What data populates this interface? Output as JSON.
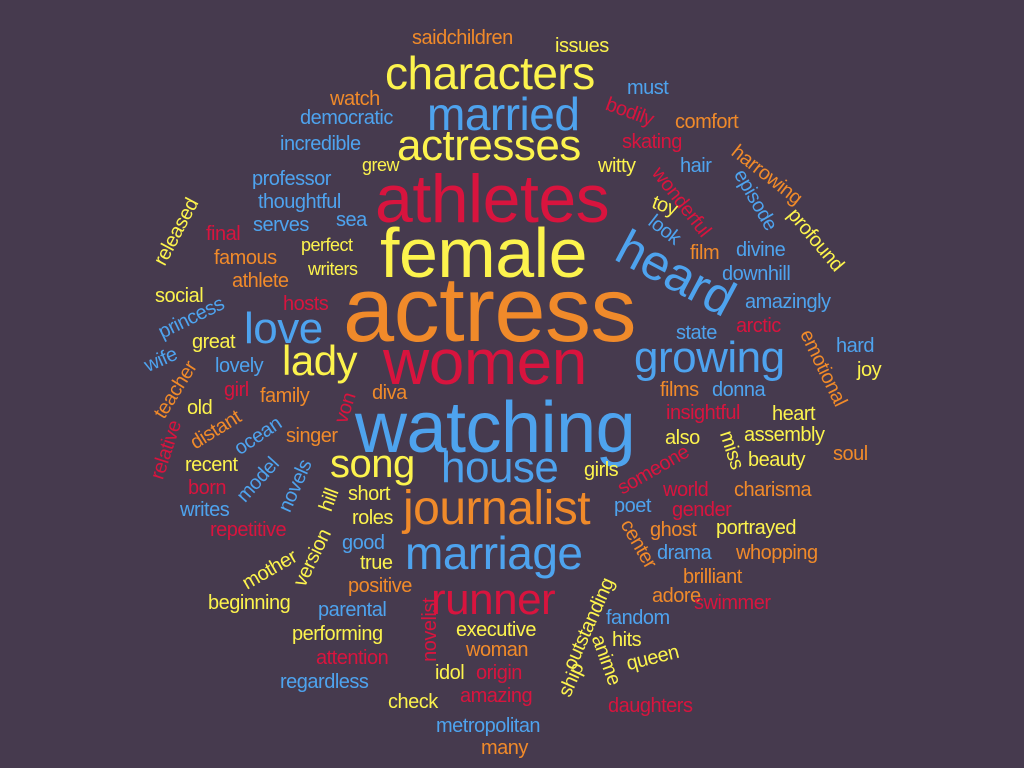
{
  "colors": {
    "background": "#463a4e",
    "yellow": "#fcf34d",
    "orange": "#f08a2a",
    "red": "#d8143e",
    "blue": "#4ea3ee"
  },
  "words": [
    {
      "text": "actress",
      "color": "orange"
    },
    {
      "text": "watching",
      "color": "blue"
    },
    {
      "text": "female",
      "color": "yellow"
    },
    {
      "text": "athletes",
      "color": "red"
    },
    {
      "text": "women",
      "color": "red"
    },
    {
      "text": "characters",
      "color": "yellow"
    },
    {
      "text": "married",
      "color": "blue"
    },
    {
      "text": "actresses",
      "color": "yellow"
    },
    {
      "text": "heard",
      "color": "blue"
    },
    {
      "text": "journalist",
      "color": "orange"
    },
    {
      "text": "marriage",
      "color": "blue"
    },
    {
      "text": "runner",
      "color": "red"
    },
    {
      "text": "growing",
      "color": "blue"
    },
    {
      "text": "house",
      "color": "blue"
    },
    {
      "text": "love",
      "color": "blue"
    },
    {
      "text": "lady",
      "color": "yellow"
    },
    {
      "text": "song",
      "color": "yellow"
    },
    {
      "text": "saidchildren",
      "color": "orange"
    },
    {
      "text": "issues",
      "color": "yellow"
    },
    {
      "text": "must",
      "color": "blue"
    },
    {
      "text": "watch",
      "color": "orange"
    },
    {
      "text": "democratic",
      "color": "blue"
    },
    {
      "text": "bodily",
      "color": "red"
    },
    {
      "text": "comfort",
      "color": "orange"
    },
    {
      "text": "incredible",
      "color": "blue"
    },
    {
      "text": "skating",
      "color": "red"
    },
    {
      "text": "grew",
      "color": "yellow"
    },
    {
      "text": "witty",
      "color": "yellow"
    },
    {
      "text": "hair",
      "color": "blue"
    },
    {
      "text": "harrowing",
      "color": "orange"
    },
    {
      "text": "professor",
      "color": "blue"
    },
    {
      "text": "wonderful",
      "color": "red"
    },
    {
      "text": "episode",
      "color": "blue"
    },
    {
      "text": "thoughtful",
      "color": "blue"
    },
    {
      "text": "toy",
      "color": "yellow"
    },
    {
      "text": "sea",
      "color": "blue"
    },
    {
      "text": "serves",
      "color": "blue"
    },
    {
      "text": "look",
      "color": "blue"
    },
    {
      "text": "profound",
      "color": "yellow"
    },
    {
      "text": "released",
      "color": "yellow"
    },
    {
      "text": "final",
      "color": "red"
    },
    {
      "text": "perfect",
      "color": "yellow"
    },
    {
      "text": "film",
      "color": "orange"
    },
    {
      "text": "divine",
      "color": "blue"
    },
    {
      "text": "famous",
      "color": "orange"
    },
    {
      "text": "writers",
      "color": "yellow"
    },
    {
      "text": "downhill",
      "color": "blue"
    },
    {
      "text": "athlete",
      "color": "orange"
    },
    {
      "text": "social",
      "color": "yellow"
    },
    {
      "text": "hosts",
      "color": "red"
    },
    {
      "text": "amazingly",
      "color": "blue"
    },
    {
      "text": "princess",
      "color": "blue"
    },
    {
      "text": "state",
      "color": "blue"
    },
    {
      "text": "arctic",
      "color": "red"
    },
    {
      "text": "emotional",
      "color": "orange"
    },
    {
      "text": "great",
      "color": "yellow"
    },
    {
      "text": "hard",
      "color": "blue"
    },
    {
      "text": "wife",
      "color": "blue"
    },
    {
      "text": "lovely",
      "color": "blue"
    },
    {
      "text": "joy",
      "color": "yellow"
    },
    {
      "text": "teacher",
      "color": "orange"
    },
    {
      "text": "girl",
      "color": "red"
    },
    {
      "text": "family",
      "color": "orange"
    },
    {
      "text": "diva",
      "color": "orange"
    },
    {
      "text": "films",
      "color": "orange"
    },
    {
      "text": "donna",
      "color": "blue"
    },
    {
      "text": "old",
      "color": "yellow"
    },
    {
      "text": "von",
      "color": "red"
    },
    {
      "text": "insightful",
      "color": "red"
    },
    {
      "text": "heart",
      "color": "yellow"
    },
    {
      "text": "relative",
      "color": "red"
    },
    {
      "text": "distant",
      "color": "orange"
    },
    {
      "text": "ocean",
      "color": "blue"
    },
    {
      "text": "singer",
      "color": "orange"
    },
    {
      "text": "also",
      "color": "yellow"
    },
    {
      "text": "miss",
      "color": "yellow"
    },
    {
      "text": "assembly",
      "color": "yellow"
    },
    {
      "text": "soul",
      "color": "orange"
    },
    {
      "text": "recent",
      "color": "yellow"
    },
    {
      "text": "someone",
      "color": "red"
    },
    {
      "text": "beauty",
      "color": "yellow"
    },
    {
      "text": "born",
      "color": "red"
    },
    {
      "text": "model",
      "color": "blue"
    },
    {
      "text": "novels",
      "color": "blue"
    },
    {
      "text": "girls",
      "color": "yellow"
    },
    {
      "text": "world",
      "color": "red"
    },
    {
      "text": "charisma",
      "color": "orange"
    },
    {
      "text": "hill",
      "color": "yellow"
    },
    {
      "text": "short",
      "color": "yellow"
    },
    {
      "text": "writes",
      "color": "blue"
    },
    {
      "text": "poet",
      "color": "blue"
    },
    {
      "text": "gender",
      "color": "red"
    },
    {
      "text": "roles",
      "color": "yellow"
    },
    {
      "text": "repetitive",
      "color": "red"
    },
    {
      "text": "ghost",
      "color": "orange"
    },
    {
      "text": "center",
      "color": "orange"
    },
    {
      "text": "portrayed",
      "color": "yellow"
    },
    {
      "text": "good",
      "color": "blue"
    },
    {
      "text": "version",
      "color": "yellow"
    },
    {
      "text": "drama",
      "color": "blue"
    },
    {
      "text": "whopping",
      "color": "orange"
    },
    {
      "text": "true",
      "color": "yellow"
    },
    {
      "text": "mother",
      "color": "yellow"
    },
    {
      "text": "brilliant",
      "color": "orange"
    },
    {
      "text": "positive",
      "color": "orange"
    },
    {
      "text": "adore",
      "color": "orange"
    },
    {
      "text": "beginning",
      "color": "yellow"
    },
    {
      "text": "parental",
      "color": "blue"
    },
    {
      "text": "swimmer",
      "color": "red"
    },
    {
      "text": "outstanding",
      "color": "yellow"
    },
    {
      "text": "fandom",
      "color": "blue"
    },
    {
      "text": "novelist",
      "color": "red"
    },
    {
      "text": "performing",
      "color": "yellow"
    },
    {
      "text": "executive",
      "color": "yellow"
    },
    {
      "text": "hits",
      "color": "yellow"
    },
    {
      "text": "anime",
      "color": "yellow"
    },
    {
      "text": "attention",
      "color": "red"
    },
    {
      "text": "woman",
      "color": "orange"
    },
    {
      "text": "queen",
      "color": "yellow"
    },
    {
      "text": "idol",
      "color": "yellow"
    },
    {
      "text": "origin",
      "color": "red"
    },
    {
      "text": "regardless",
      "color": "blue"
    },
    {
      "text": "ship",
      "color": "yellow"
    },
    {
      "text": "amazing",
      "color": "red"
    },
    {
      "text": "check",
      "color": "yellow"
    },
    {
      "text": "daughters",
      "color": "red"
    },
    {
      "text": "metropolitan",
      "color": "blue"
    },
    {
      "text": "many",
      "color": "orange"
    }
  ]
}
